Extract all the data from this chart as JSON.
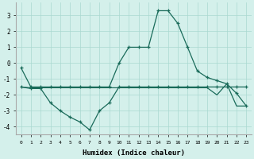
{
  "line1_x": [
    0,
    1,
    2,
    3,
    4,
    5,
    6,
    7,
    8,
    9,
    10,
    11,
    12,
    13,
    14,
    15,
    16,
    17,
    18,
    19,
    20,
    21,
    22,
    23
  ],
  "line1_y": [
    -0.3,
    -1.5,
    -1.5,
    -1.5,
    -1.5,
    -1.5,
    -1.5,
    -1.5,
    -1.5,
    -1.5,
    0.0,
    1.0,
    1.0,
    1.0,
    3.3,
    3.3,
    2.5,
    1.0,
    -0.5,
    -0.9,
    -1.1,
    -1.3,
    -1.9,
    -2.7
  ],
  "line2_x": [
    0,
    1,
    2,
    3,
    4,
    5,
    6,
    7,
    8,
    9,
    10,
    11,
    12,
    13,
    14,
    15,
    16,
    17,
    18,
    19,
    20,
    21,
    22,
    23
  ],
  "line2_y": [
    -1.5,
    -1.6,
    -1.6,
    -2.5,
    -3.0,
    -3.4,
    -3.7,
    -4.2,
    -3.0,
    -2.5,
    -1.5,
    -1.5,
    -1.5,
    -1.5,
    -1.5,
    -1.5,
    -1.5,
    -1.5,
    -1.5,
    -1.5,
    -1.5,
    -1.5,
    -1.5,
    -1.5
  ],
  "line3_x": [
    0,
    1,
    2,
    3,
    4,
    5,
    6,
    7,
    8,
    9,
    10,
    11,
    12,
    13,
    14,
    15,
    16,
    17,
    18,
    19,
    20,
    21,
    22,
    23
  ],
  "line3_y": [
    -1.5,
    -1.55,
    -1.55,
    -1.55,
    -1.55,
    -1.55,
    -1.55,
    -1.55,
    -1.55,
    -1.55,
    -1.55,
    -1.55,
    -1.55,
    -1.55,
    -1.55,
    -1.55,
    -1.55,
    -1.55,
    -1.55,
    -1.55,
    -2.0,
    -1.3,
    -2.7,
    -2.7
  ],
  "line_color": "#1a6b5a",
  "bg_color": "#d4f0eb",
  "grid_color": "#aad8d0",
  "xlabel": "Humidex (Indice chaleur)",
  "ylim": [
    -4.5,
    3.8
  ],
  "xlim": [
    -0.5,
    23.5
  ],
  "ytick_vals": [
    -4,
    -3,
    -2,
    -1,
    0,
    1,
    2,
    3
  ],
  "label_fontsize": 6.5
}
